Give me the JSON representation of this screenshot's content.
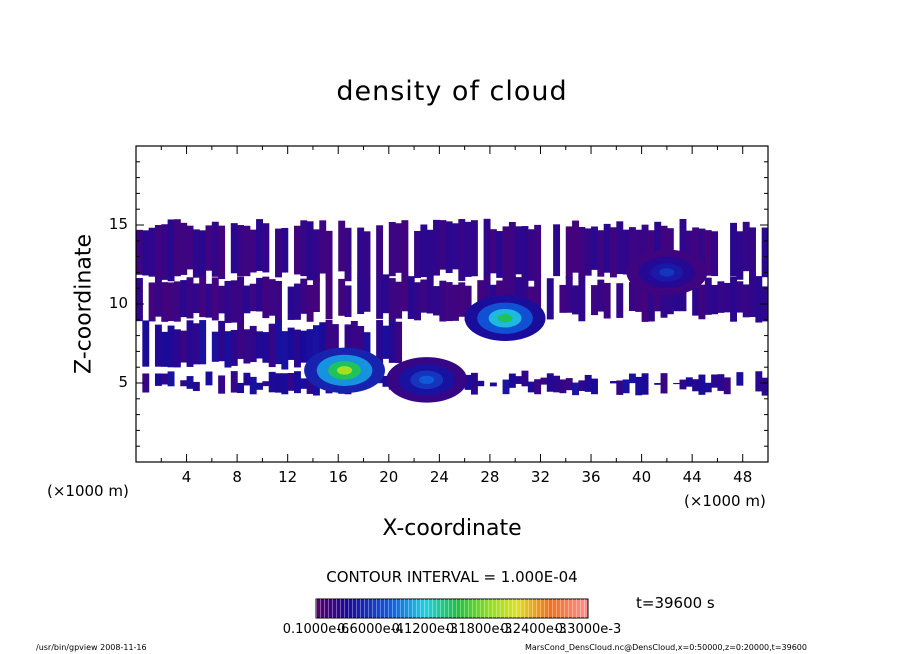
{
  "chart_data": {
    "type": "heatmap",
    "title": "density of cloud",
    "xlabel": "X-coordinate",
    "ylabel": "Z-coordinate",
    "x_unit_left": "(×1000 m)",
    "x_unit_right": "(×1000 m)",
    "xlim": [
      0,
      50
    ],
    "ylim": [
      0,
      20
    ],
    "x_ticks": [
      "4",
      "8",
      "12",
      "16",
      "20",
      "24",
      "28",
      "32",
      "36",
      "40",
      "44",
      "48"
    ],
    "y_ticks": [
      "5",
      "10",
      "15"
    ],
    "contour_interval": "CONTOUR INTERVAL = 1.000E-04",
    "time_label": "t=39600 s",
    "colorbar_labels": [
      "0.1000e-6",
      "0.6000e-4",
      "0.1200e-3",
      "0.1800e-3",
      "0.2400e-3",
      "0.3000e-3"
    ],
    "colorbar_range": [
      1e-07,
      0.0003
    ],
    "cloud_layers": [
      {
        "z_bottom": 11.8,
        "z_top": 15.0,
        "x_start": 0,
        "x_end": 50,
        "level": 2e-05
      },
      {
        "z_bottom": 9.2,
        "z_top": 11.5,
        "x_start": 0,
        "x_end": 50,
        "level": 2e-05
      },
      {
        "z_bottom": 6.2,
        "z_top": 8.6,
        "x_start": 0,
        "x_end": 21,
        "level": 3e-05
      },
      {
        "z_bottom": 4.6,
        "z_top": 5.4,
        "x_start": 0,
        "x_end": 50,
        "level": 3e-05
      }
    ],
    "cloud_maxima": [
      {
        "x": 16.5,
        "z": 5.8,
        "value": 0.0002
      },
      {
        "x": 29.2,
        "z": 9.1,
        "value": 0.00015
      },
      {
        "x": 23.0,
        "z": 5.2,
        "value": 8e-05
      },
      {
        "x": 42.0,
        "z": 12.0,
        "value": 6e-05
      }
    ]
  },
  "footer": {
    "left": "/usr/bin/gpview   2008-11-16",
    "right": "MarsCond_DensCloud.nc@DensCloud,x=0:50000,z=0:20000,t=39600"
  }
}
